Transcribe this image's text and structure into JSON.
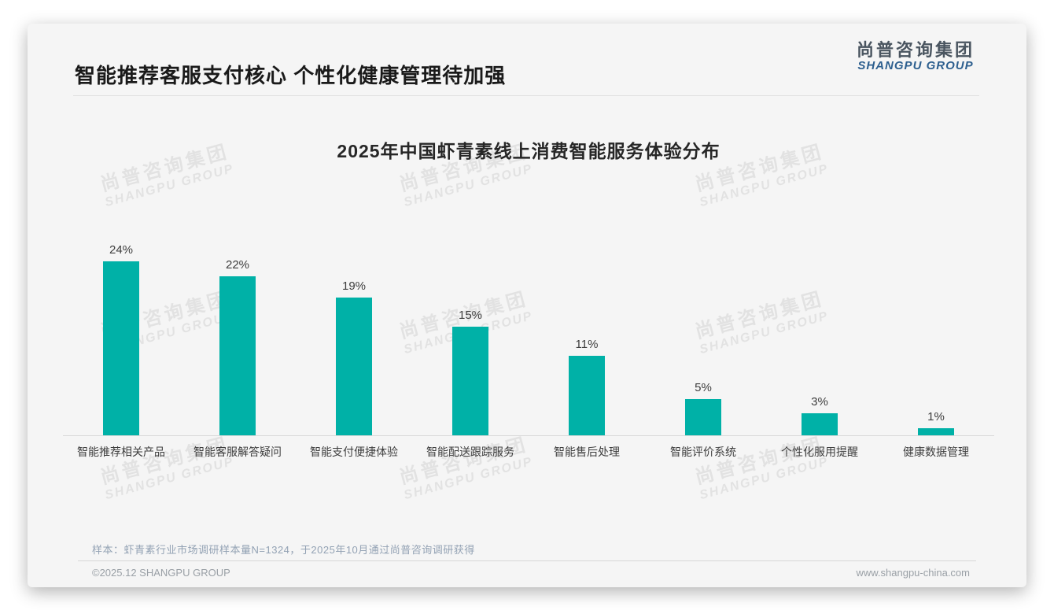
{
  "header": {
    "title": "智能推荐客服支付核心 个性化健康管理待加强",
    "logo_cn": "尚普咨询集团",
    "logo_en": "SHANGPU GROUP"
  },
  "chart_data": {
    "type": "bar",
    "title": "2025年中国虾青素线上消费智能服务体验分布",
    "categories": [
      "智能推荐相关产品",
      "智能客服解答疑问",
      "智能支付便捷体验",
      "智能配送跟踪服务",
      "智能售后处理",
      "智能评价系统",
      "个性化服用提醒",
      "健康数据管理"
    ],
    "values": [
      24,
      22,
      19,
      15,
      11,
      5,
      3,
      1
    ],
    "value_labels": [
      "24%",
      "22%",
      "19%",
      "15%",
      "11%",
      "5%",
      "3%",
      "1%"
    ],
    "xlabel": "",
    "ylabel": "",
    "ylim": [
      0,
      26
    ],
    "grid": false,
    "legend": false,
    "bar_color": "#00b1a7"
  },
  "watermark": {
    "cn": "尚普咨询集团",
    "en": "SHANGPU GROUP"
  },
  "footer": {
    "note": "样本：虾青素行业市场调研样本量N=1324，于2025年10月通过尚普咨询调研获得",
    "copyright": "©2025.12 SHANGPU GROUP",
    "website": "www.shangpu-china.com"
  }
}
